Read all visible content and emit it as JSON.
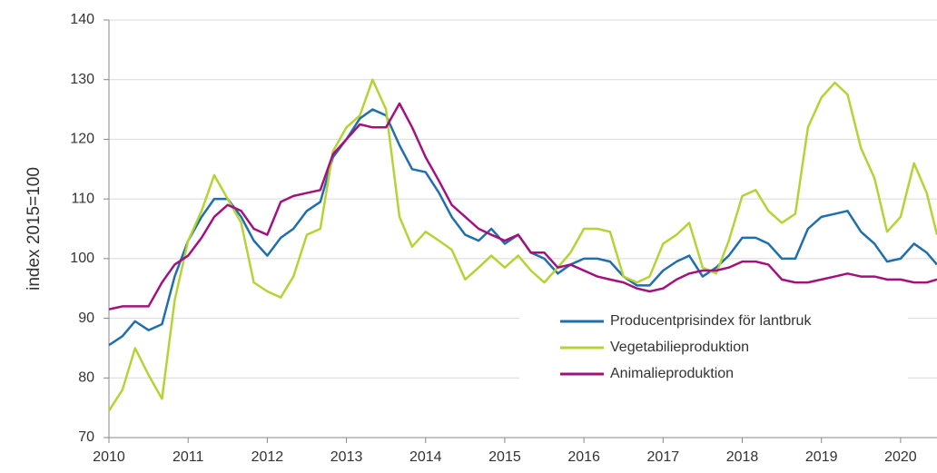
{
  "chart_data": {
    "type": "line",
    "y_label": "index 2015=100",
    "x": [
      2010,
      2010.17,
      2010.33,
      2010.5,
      2010.67,
      2010.83,
      2011,
      2011.17,
      2011.33,
      2011.5,
      2011.67,
      2011.83,
      2012,
      2012.17,
      2012.33,
      2012.5,
      2012.67,
      2012.83,
      2013,
      2013.17,
      2013.33,
      2013.5,
      2013.67,
      2013.83,
      2014,
      2014.17,
      2014.33,
      2014.5,
      2014.67,
      2014.83,
      2015,
      2015.17,
      2015.33,
      2015.5,
      2015.67,
      2015.83,
      2016,
      2016.17,
      2016.33,
      2016.5,
      2016.67,
      2016.83,
      2017,
      2017.17,
      2017.33,
      2017.5,
      2017.67,
      2017.83,
      2018,
      2018.17,
      2018.33,
      2018.5,
      2018.67,
      2018.83,
      2019,
      2019.17,
      2019.33,
      2019.5,
      2019.67,
      2019.83,
      2020,
      2020.17,
      2020.33,
      2020.46
    ],
    "series": [
      {
        "name": "Producentprisindex för lantbruk",
        "color": "#1f6fad",
        "values": [
          85.5,
          87,
          89.5,
          88,
          89,
          97,
          103,
          107,
          110,
          110,
          107,
          103,
          100.5,
          103.5,
          105,
          108,
          109.5,
          117,
          120,
          123.5,
          125,
          124,
          119,
          115,
          114.5,
          111,
          107,
          104,
          103,
          105,
          102.5,
          104,
          101,
          100,
          97.5,
          99,
          100,
          100,
          99.5,
          97,
          95.5,
          95.5,
          98,
          99.5,
          100.5,
          97,
          98.5,
          100.5,
          103.5,
          103.5,
          102.5,
          100,
          100,
          105,
          107,
          107.5,
          108,
          104.5,
          102.5,
          99.5,
          100,
          102.5,
          101,
          99
        ]
      },
      {
        "name": "Vegetabilieproduktion",
        "color": "#b5d334",
        "values": [
          74.5,
          78,
          85,
          80.5,
          76.5,
          93,
          103,
          108,
          114,
          110,
          106,
          96,
          94.5,
          93.5,
          97,
          104,
          105,
          118,
          122,
          124,
          130,
          125,
          107,
          102,
          104.5,
          103,
          101.5,
          96.5,
          98.5,
          100.5,
          98.5,
          100.5,
          98,
          96,
          98.5,
          101,
          105,
          105,
          104.5,
          97,
          96,
          97,
          102.5,
          104,
          106,
          98.5,
          97.5,
          103,
          110.5,
          111.5,
          108,
          106,
          107.5,
          122,
          127,
          129.5,
          127.5,
          118.5,
          113.5,
          104.5,
          107,
          116,
          111,
          104
        ]
      },
      {
        "name": "Animalieproduktion",
        "color": "#a3117e",
        "values": [
          91.5,
          92,
          92,
          92,
          96,
          99,
          100.5,
          103.5,
          107,
          109,
          108,
          105,
          104,
          109.5,
          110.5,
          111,
          111.5,
          117.5,
          120,
          122.5,
          122,
          122,
          126,
          122,
          117,
          113,
          109,
          107,
          105,
          104,
          103,
          104,
          101,
          101,
          98.5,
          99,
          98,
          97,
          96.5,
          96,
          95,
          94.5,
          95,
          96.5,
          97.5,
          98,
          98,
          98.5,
          99.5,
          99.5,
          99,
          96.5,
          96,
          96,
          96.5,
          97,
          97.5,
          97,
          97,
          96.5,
          96.5,
          96,
          96,
          96.5
        ]
      }
    ],
    "xlim": [
      2010,
      2020.46
    ],
    "xticks": [
      2010,
      2011,
      2012,
      2013,
      2014,
      2015,
      2016,
      2017,
      2018,
      2019,
      2020
    ],
    "ylim": [
      70,
      140
    ],
    "yticks": [
      70,
      80,
      90,
      100,
      110,
      120,
      130,
      140
    ],
    "grid": true,
    "legend": "lower right"
  }
}
